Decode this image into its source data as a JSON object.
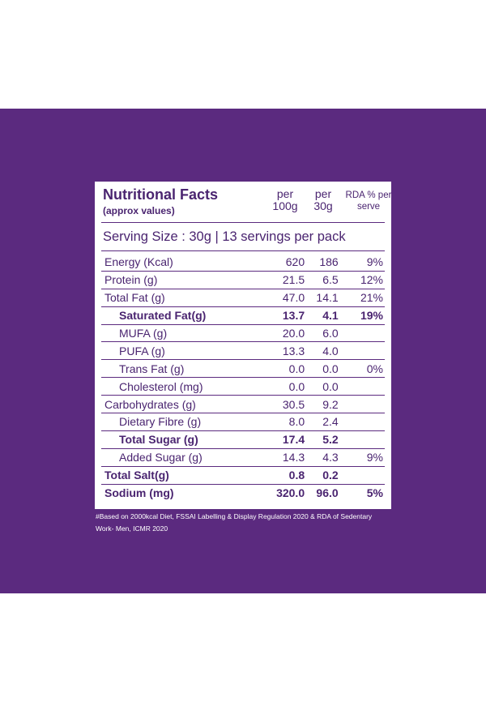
{
  "label": {
    "title": "Nutritional Facts",
    "subtitle": "(approx values)",
    "col_per100": "per 100g",
    "col_per30": "per 30g",
    "col_rda": "RDA % per serve",
    "serving": "Serving Size : 30g  |  13 servings per pack",
    "rows": [
      {
        "name": "Energy (Kcal)",
        "per100": "620",
        "per30": "186",
        "rda": "9%"
      },
      {
        "name": "Protein (g)",
        "per100": "21.5",
        "per30": "6.5",
        "rda": "12%"
      },
      {
        "name": "Total Fat (g)",
        "per100": "47.0",
        "per30": "14.1",
        "rda": "21%"
      },
      {
        "name": "Saturated Fat(g)",
        "per100": "13.7",
        "per30": "4.1",
        "rda": "19%"
      },
      {
        "name": "MUFA (g)",
        "per100": "20.0",
        "per30": "6.0",
        "rda": ""
      },
      {
        "name": "PUFA (g)",
        "per100": "13.3",
        "per30": "4.0",
        "rda": ""
      },
      {
        "name": "Trans Fat (g)",
        "per100": "0.0",
        "per30": "0.0",
        "rda": "0%"
      },
      {
        "name": "Cholesterol (mg)",
        "per100": "0.0",
        "per30": "0.0",
        "rda": ""
      },
      {
        "name": "Carbohydrates (g)",
        "per100": "30.5",
        "per30": "9.2",
        "rda": ""
      },
      {
        "name": "Dietary Fibre (g)",
        "per100": "8.0",
        "per30": "2.4",
        "rda": ""
      },
      {
        "name": "Total Sugar (g)",
        "per100": "17.4",
        "per30": "5.2",
        "rda": ""
      },
      {
        "name": "Added Sugar (g)",
        "per100": "14.3",
        "per30": "4.3",
        "rda": "9%"
      },
      {
        "name": "Total Salt(g)",
        "per100": "0.8",
        "per30": "0.2",
        "rda": ""
      },
      {
        "name": "Sodium (mg)",
        "per100": "320.0",
        "per30": "96.0",
        "rda": "5%"
      }
    ],
    "footnote": "#Based on 2000kcal Diet, FSSAI Labelling & Display Regulation 2020 & RDA of Sedentary Work- Men, ICMR 2020"
  },
  "colors": {
    "background": "#5b2a7f",
    "text": "#4a2470",
    "card": "#ffffff"
  }
}
